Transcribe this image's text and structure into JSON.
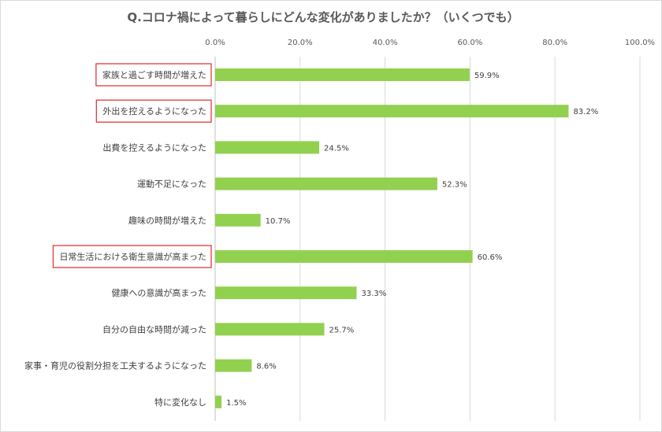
{
  "chart_data": {
    "type": "bar",
    "orientation": "horizontal",
    "title": "Q.コロナ禍によって暮らしにどんな変化がありましたか？（いくつでも）",
    "xlim": [
      0,
      100
    ],
    "ticks": [
      "0.0%",
      "20.0%",
      "40.0%",
      "60.0%",
      "80.0%",
      "100.0%"
    ],
    "tick_values": [
      0,
      20,
      40,
      60,
      80,
      100
    ],
    "grid": true,
    "categories": [
      "家族と過ごす時間が増えた",
      "外出を控えるようになった",
      "出費を控えるようになった",
      "運動不足になった",
      "趣味の時間が増えた",
      "日常生活における衛生意識が高まった",
      "健康への意識が高まった",
      "自分の自由な時間が減った",
      "家事・育児の役割分担を工夫するようになった",
      "特に変化なし"
    ],
    "values": [
      59.9,
      83.2,
      24.5,
      52.3,
      10.7,
      60.6,
      33.3,
      25.7,
      8.6,
      1.5
    ],
    "value_labels": [
      "59.9%",
      "83.2%",
      "24.5%",
      "52.3%",
      "10.7%",
      "60.6%",
      "33.3%",
      "25.7%",
      "8.6%",
      "1.5%"
    ],
    "highlighted": [
      true,
      true,
      false,
      false,
      false,
      true,
      false,
      false,
      false,
      false
    ],
    "bar_color": "#92d050",
    "highlight_color": "#e0393e"
  }
}
